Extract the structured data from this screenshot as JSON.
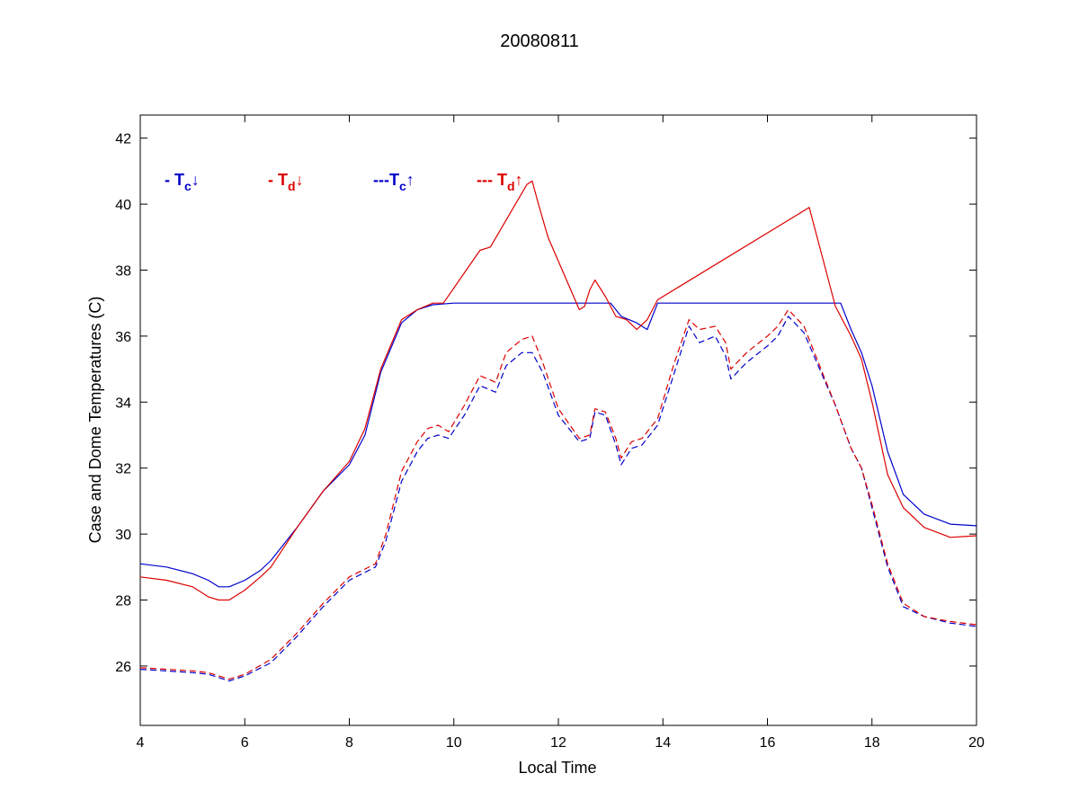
{
  "chart_data": {
    "type": "line",
    "title": "20080811",
    "xlabel": "Local Time",
    "ylabel": "Case and Dome Temperatures (C)",
    "xlim": [
      4,
      20
    ],
    "ylim": [
      24.2,
      42.7
    ],
    "xticks": [
      4,
      6,
      8,
      10,
      12,
      14,
      16,
      18,
      20
    ],
    "yticks": [
      26,
      28,
      30,
      32,
      34,
      36,
      38,
      40,
      42
    ],
    "grid": false,
    "legend_placement": "top-left, inside",
    "colors": {
      "blue": "#0000cc",
      "red": "#dd0000"
    },
    "legend": [
      {
        "series": 0,
        "prefix": "- T",
        "sub": "c",
        "arrow": "↓",
        "color": "#0000cc"
      },
      {
        "series": 1,
        "prefix": "- T",
        "sub": "d",
        "arrow": "↓",
        "color": "#dd0000"
      },
      {
        "series": 2,
        "prefix": "---T",
        "sub": "c",
        "arrow": "↑",
        "color": "#0000cc"
      },
      {
        "series": 3,
        "prefix": "--- T",
        "sub": "d",
        "arrow": "↑",
        "color": "#dd0000"
      }
    ],
    "series": [
      {
        "color": "#0000cc",
        "style": "solid",
        "x": [
          4,
          4.5,
          5,
          5.3,
          5.5,
          5.7,
          6,
          6.3,
          6.5,
          7,
          7.5,
          8,
          8.3,
          8.6,
          9,
          9.3,
          9.6,
          10,
          11,
          12,
          13,
          13.2,
          13.5,
          13.7,
          13.9,
          14.5,
          15,
          16,
          17,
          17.4,
          17.6,
          17.8,
          18,
          18.3,
          18.6,
          19,
          19.5,
          20
        ],
        "y": [
          29.1,
          29.0,
          28.8,
          28.6,
          28.4,
          28.4,
          28.6,
          28.9,
          29.2,
          30.2,
          31.3,
          32.1,
          33.0,
          34.9,
          36.4,
          36.8,
          36.95,
          37.0,
          37.0,
          37.0,
          37.0,
          36.6,
          36.4,
          36.2,
          37.0,
          37.0,
          37.0,
          37.0,
          37.0,
          37.0,
          36.2,
          35.5,
          34.5,
          32.5,
          31.2,
          30.6,
          30.3,
          30.25
        ]
      },
      {
        "color": "#dd0000",
        "style": "solid",
        "x": [
          4,
          4.5,
          5,
          5.3,
          5.5,
          5.7,
          6,
          6.3,
          6.5,
          7,
          7.5,
          8,
          8.3,
          8.6,
          9,
          9.3,
          9.6,
          9.8,
          10.5,
          10.7,
          11.4,
          11.5,
          11.6,
          11.8,
          12.4,
          12.5,
          12.6,
          12.7,
          12.9,
          13.1,
          13.3,
          13.5,
          13.7,
          13.9,
          16.8,
          17.3,
          17.6,
          17.8,
          18,
          18.3,
          18.6,
          19,
          19.5,
          20
        ],
        "y": [
          28.7,
          28.6,
          28.4,
          28.1,
          28.0,
          28.0,
          28.3,
          28.7,
          29.0,
          30.2,
          31.3,
          32.2,
          33.2,
          35.0,
          36.5,
          36.8,
          37.0,
          37.0,
          38.6,
          38.7,
          40.6,
          40.7,
          40.1,
          39.0,
          36.8,
          36.9,
          37.4,
          37.7,
          37.2,
          36.6,
          36.5,
          36.2,
          36.5,
          37.1,
          39.9,
          36.9,
          36.0,
          35.3,
          34.0,
          31.8,
          30.8,
          30.2,
          29.9,
          29.95
        ]
      },
      {
        "color": "#0000cc",
        "style": "dashed",
        "x": [
          4,
          4.5,
          5,
          5.3,
          5.5,
          5.7,
          6,
          6.5,
          7,
          7.5,
          8,
          8.5,
          8.7,
          9,
          9.3,
          9.5,
          9.7,
          9.9,
          10.2,
          10.5,
          10.8,
          11,
          11.3,
          11.5,
          11.7,
          12,
          12.4,
          12.6,
          12.7,
          12.9,
          13.1,
          13.2,
          13.4,
          13.6,
          13.9,
          14.2,
          14.5,
          14.7,
          15,
          15.2,
          15.3,
          15.6,
          16,
          16.2,
          16.4,
          16.7,
          17,
          17.3,
          17.6,
          17.8,
          18,
          18.3,
          18.6,
          19,
          19.5,
          20
        ],
        "y": [
          25.9,
          25.85,
          25.8,
          25.75,
          25.65,
          25.55,
          25.7,
          26.1,
          26.9,
          27.8,
          28.6,
          29.0,
          29.8,
          31.6,
          32.5,
          32.9,
          33.0,
          32.9,
          33.6,
          34.5,
          34.3,
          35.1,
          35.5,
          35.5,
          34.9,
          33.6,
          32.8,
          32.9,
          33.7,
          33.6,
          32.7,
          32.1,
          32.6,
          32.7,
          33.3,
          34.8,
          36.3,
          35.8,
          36.0,
          35.4,
          34.7,
          35.2,
          35.7,
          36.0,
          36.6,
          36.1,
          35.0,
          33.9,
          32.6,
          32.0,
          30.8,
          29.0,
          27.8,
          27.5,
          27.3,
          27.2
        ]
      },
      {
        "color": "#dd0000",
        "style": "dashed",
        "x": [
          4,
          4.5,
          5,
          5.3,
          5.5,
          5.7,
          6,
          6.5,
          7,
          7.5,
          8,
          8.5,
          8.7,
          9,
          9.3,
          9.5,
          9.7,
          9.9,
          10.2,
          10.5,
          10.8,
          11,
          11.3,
          11.5,
          11.7,
          12,
          12.4,
          12.6,
          12.7,
          12.9,
          13.1,
          13.2,
          13.4,
          13.6,
          13.9,
          14.2,
          14.5,
          14.7,
          15,
          15.2,
          15.3,
          15.6,
          16,
          16.2,
          16.4,
          16.7,
          17,
          17.3,
          17.6,
          17.8,
          18,
          18.3,
          18.6,
          19,
          19.5,
          20
        ],
        "y": [
          25.95,
          25.9,
          25.85,
          25.8,
          25.7,
          25.6,
          25.75,
          26.2,
          27.0,
          27.9,
          28.7,
          29.1,
          30.0,
          31.9,
          32.8,
          33.2,
          33.3,
          33.1,
          33.9,
          34.8,
          34.6,
          35.5,
          35.9,
          36.0,
          35.2,
          33.8,
          32.9,
          33.0,
          33.8,
          33.7,
          32.9,
          32.3,
          32.8,
          32.9,
          33.5,
          35.1,
          36.5,
          36.2,
          36.3,
          35.8,
          35.0,
          35.5,
          36.0,
          36.3,
          36.8,
          36.3,
          35.1,
          33.9,
          32.6,
          32.0,
          30.9,
          29.1,
          27.9,
          27.5,
          27.35,
          27.25
        ]
      }
    ]
  }
}
